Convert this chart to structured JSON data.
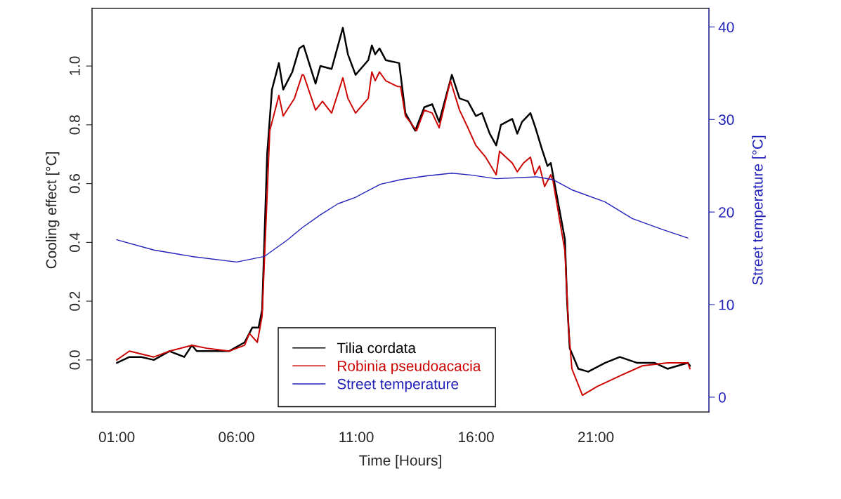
{
  "chart_data": {
    "type": "line",
    "xlabel": "Time [Hours]",
    "ylabel": "Cooling effect [°C]",
    "y2label": "Street temperature [°C]",
    "xlim": [
      -0.03,
      25.72
    ],
    "xticks": [
      {
        "value": 1,
        "label": "01:00"
      },
      {
        "value": 6,
        "label": "06:00"
      },
      {
        "value": 11,
        "label": "11:00"
      },
      {
        "value": 16,
        "label": "16:00"
      },
      {
        "value": 21,
        "label": "21:00"
      }
    ],
    "ylim": [
      -0.177,
      1.196
    ],
    "yticks": [
      {
        "value": 0,
        "label": "0.0"
      },
      {
        "value": 0.2,
        "label": "0.2"
      },
      {
        "value": 0.4,
        "label": "0.4"
      },
      {
        "value": 0.6,
        "label": "0.6"
      },
      {
        "value": 0.8,
        "label": "0.8"
      },
      {
        "value": 1.0,
        "label": "1.0"
      }
    ],
    "y2lim": [
      -1.6,
      42
    ],
    "y2ticks": [
      0,
      10,
      20,
      30,
      40
    ],
    "legend": "bottom",
    "grid": false,
    "series": [
      {
        "name": "Tilia cordata",
        "color": "#000000",
        "x": [
          1.0,
          1.53,
          2.03,
          2.55,
          3.2,
          3.82,
          4.14,
          4.34,
          4.75,
          5.19,
          5.69,
          6.34,
          6.66,
          6.92,
          7.07,
          7.28,
          7.48,
          7.77,
          7.95,
          8.33,
          8.62,
          8.8,
          9.3,
          9.5,
          9.97,
          10.44,
          10.65,
          10.97,
          11.5,
          11.65,
          11.79,
          11.97,
          12.23,
          12.79,
          13.05,
          13.46,
          13.84,
          14.17,
          14.46,
          14.99,
          15.31,
          15.66,
          15.99,
          16.25,
          16.57,
          16.84,
          17.04,
          17.51,
          17.72,
          17.92,
          18.27,
          18.48,
          18.74,
          18.98,
          19.12,
          19.21,
          19.71,
          19.8,
          19.91,
          20.27,
          20.68,
          21.38,
          22.0,
          22.73,
          23.46,
          23.99,
          24.84,
          24.93
        ],
        "values": [
          -0.01,
          0.01,
          0.01,
          0.0,
          0.03,
          0.01,
          0.05,
          0.03,
          0.03,
          0.03,
          0.03,
          0.06,
          0.11,
          0.11,
          0.17,
          0.7,
          0.92,
          1.01,
          0.92,
          0.98,
          1.06,
          1.07,
          0.94,
          1.0,
          0.99,
          1.13,
          1.04,
          0.97,
          1.02,
          1.07,
          1.04,
          1.06,
          1.02,
          1.01,
          0.84,
          0.78,
          0.86,
          0.87,
          0.81,
          0.97,
          0.89,
          0.88,
          0.83,
          0.84,
          0.77,
          0.73,
          0.8,
          0.82,
          0.77,
          0.81,
          0.84,
          0.79,
          0.72,
          0.66,
          0.67,
          0.63,
          0.41,
          0.2,
          0.04,
          -0.03,
          -0.04,
          -0.01,
          0.01,
          -0.01,
          -0.01,
          -0.03,
          -0.01,
          -0.02
        ]
      },
      {
        "name": "Robinia pseudoacacia",
        "color": "#cc0000",
        "x": [
          1.0,
          1.53,
          2.55,
          3.2,
          4.14,
          4.75,
          5.69,
          6.34,
          6.54,
          6.87,
          7.07,
          7.39,
          7.77,
          7.95,
          8.42,
          8.74,
          8.8,
          9.3,
          9.59,
          9.97,
          10.44,
          10.65,
          10.97,
          11.5,
          11.65,
          11.79,
          11.97,
          12.23,
          12.73,
          12.85,
          13.05,
          13.52,
          13.84,
          14.17,
          14.46,
          14.93,
          15.31,
          15.66,
          15.99,
          16.4,
          16.84,
          16.98,
          17.51,
          17.72,
          17.98,
          18.27,
          18.45,
          18.65,
          18.86,
          19.12,
          19.21,
          19.71,
          19.86,
          20.0,
          20.44,
          21.06,
          22.11,
          22.94,
          23.99,
          24.84,
          24.93
        ],
        "values": [
          0.0,
          0.03,
          0.01,
          0.03,
          0.05,
          0.04,
          0.03,
          0.05,
          0.09,
          0.06,
          0.15,
          0.78,
          0.9,
          0.83,
          0.89,
          0.97,
          0.97,
          0.85,
          0.88,
          0.84,
          0.96,
          0.89,
          0.84,
          0.89,
          0.98,
          0.95,
          0.98,
          0.95,
          0.93,
          0.93,
          0.83,
          0.78,
          0.85,
          0.84,
          0.79,
          0.95,
          0.85,
          0.79,
          0.73,
          0.69,
          0.63,
          0.71,
          0.67,
          0.64,
          0.67,
          0.69,
          0.63,
          0.66,
          0.59,
          0.63,
          0.61,
          0.37,
          0.11,
          -0.03,
          -0.12,
          -0.09,
          -0.05,
          -0.02,
          -0.01,
          -0.01,
          -0.03
        ]
      },
      {
        "name": "Street temperature",
        "color": "#2222bb",
        "axis": "y2",
        "x": [
          1.0,
          2.55,
          4.14,
          6.01,
          7.16,
          8.13,
          8.74,
          9.5,
          10.24,
          10.97,
          12.0,
          12.85,
          13.9,
          14.99,
          15.78,
          16.84,
          18.54,
          19.21,
          20.0,
          21.38,
          22.52,
          23.79,
          24.84
        ],
        "values": [
          17.0,
          15.9,
          15.2,
          14.6,
          15.2,
          17.0,
          18.3,
          19.7,
          20.9,
          21.6,
          23.0,
          23.5,
          23.9,
          24.2,
          24.0,
          23.6,
          23.8,
          23.5,
          22.4,
          21.1,
          19.3,
          18.1,
          17.2
        ]
      }
    ]
  }
}
